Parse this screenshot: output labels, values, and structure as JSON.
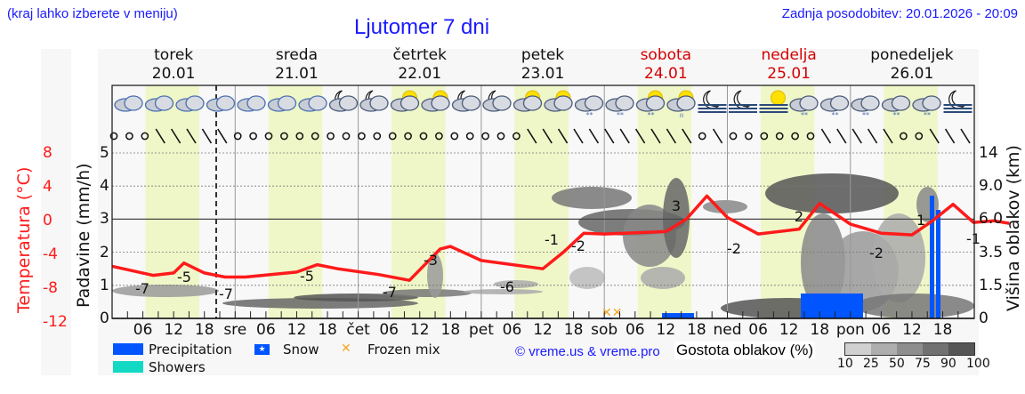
{
  "header": {
    "location_note": "(kraj lahko izberete v meniju)",
    "title": "Ljutomer 7 dni",
    "last_update": "Zadnja posodobitev: 20.01.2026 - 20:09"
  },
  "days": [
    {
      "name": "torek",
      "date": "20.01",
      "weekend": false
    },
    {
      "name": "sreda",
      "date": "21.01",
      "weekend": false
    },
    {
      "name": "četrtek",
      "date": "22.01",
      "weekend": false
    },
    {
      "name": "petek",
      "date": "23.01",
      "weekend": false
    },
    {
      "name": "sobota",
      "date": "24.01",
      "weekend": true
    },
    {
      "name": "nedelja",
      "date": "25.01",
      "weekend": true
    },
    {
      "name": "ponedeljek",
      "date": "26.01",
      "weekend": false
    }
  ],
  "axes": {
    "temp_label": "Temperatura (°C)",
    "precip_label": "Padavine (mm/h)",
    "cloud_height_label": "Višina oblakov (km)",
    "temp_ticks": [
      "8",
      "4",
      "0",
      "-4",
      "-8",
      "-12"
    ],
    "precip_ticks": [
      "5",
      "4",
      "3",
      "2",
      "1",
      "0"
    ],
    "cloud_height_ticks": [
      "14",
      "9.0",
      "6.0",
      "3.5",
      "1.5",
      "0"
    ],
    "x_ticks": [
      "06",
      "12",
      "18",
      "sre",
      "06",
      "12",
      "18",
      "čet",
      "06",
      "12",
      "18",
      "pet",
      "06",
      "12",
      "18",
      "sob",
      "06",
      "12",
      "18",
      "ned",
      "06",
      "12",
      "18",
      "pon",
      "06",
      "12",
      "18"
    ]
  },
  "legend": {
    "precipitation": "Precipitation",
    "snow": "Snow",
    "frozen_mix": "Frozen mix",
    "showers": "Showers",
    "credit": "© vreme.us & vreme.pro",
    "cloud_density_label": "Gostota oblakov (%)",
    "cloud_density_scale": [
      "10",
      "25",
      "50",
      "75",
      "90",
      "100"
    ]
  },
  "colors": {
    "temperature": "#ff1a1a",
    "precipitation": "#0055ff",
    "showers": "#11d9c4",
    "frozen_mix": "#f5a623",
    "daylight": "#eff7c8",
    "title": "#1a1aff",
    "weekend": "#d40000"
  },
  "weather_icons": [
    "cloudy",
    "cloudy",
    "cloudy",
    "cloudy",
    "cloudy",
    "cloudy",
    "cloudy",
    "moon-cloud",
    "moon-cloud",
    "sun-cloud",
    "sun-cloud",
    "moon-cloud",
    "moon-cloud",
    "sun-cloud",
    "sun-cloud",
    "snow-cloud",
    "snow-cloud",
    "sun-snow-cloud",
    "sun-rain-cloud",
    "moon-fog",
    "moon-fog",
    "sun-fog",
    "snow-cloud",
    "snow-cloud",
    "snow-cloud",
    "snow-cloud",
    "snow-cloud",
    "moon-fog"
  ],
  "chart_data": {
    "type": "line",
    "title": "Ljutomer 7 dni",
    "xlabel": "",
    "ylabel": "Temperatura (°C) / Padavine (mm/h)",
    "ylim_temperature": [
      -12,
      10
    ],
    "ylim_precipitation": [
      0,
      5.5
    ],
    "grid": true,
    "legend_position": "bottom",
    "x": [
      "20.01 00",
      "20.01 06",
      "20.01 12",
      "20.01 18",
      "21.01 00",
      "21.01 06",
      "21.01 12",
      "21.01 18",
      "22.01 00",
      "22.01 06",
      "22.01 12",
      "22.01 18",
      "23.01 00",
      "23.01 06",
      "23.01 12",
      "23.01 18",
      "24.01 00",
      "24.01 06",
      "24.01 12",
      "24.01 18",
      "25.01 00",
      "25.01 06",
      "25.01 12",
      "25.01 18",
      "26.01 00",
      "26.01 06",
      "26.01 12",
      "26.01 18",
      "27.01 00"
    ],
    "series": [
      {
        "name": "Temperatura (°C)",
        "values": [
          -6.5,
          -7.3,
          -6.8,
          -5.5,
          -7.1,
          -7.2,
          -6.8,
          -5.6,
          -6.4,
          -6.9,
          -7.4,
          -3.5,
          -4.8,
          -6.0,
          -6.2,
          -1.0,
          -1.7,
          -1.6,
          -1.3,
          2.8,
          -1.0,
          -1.8,
          -1.0,
          1.7,
          -1.5,
          -2.0,
          -2.1,
          0.8,
          -0.5
        ]
      },
      {
        "name": "Precipitation (mm/h)",
        "values": [
          0,
          0,
          0,
          0,
          0,
          0,
          0,
          0,
          0,
          0,
          0,
          0,
          0,
          0,
          0,
          0,
          0.05,
          0.15,
          0.1,
          0,
          0,
          0,
          0.3,
          0.8,
          0.1,
          0.05,
          0,
          3.7,
          0
        ]
      }
    ],
    "annotations": [
      {
        "x": "20.01 06",
        "label": "-7"
      },
      {
        "x": "20.01 14",
        "label": "-5"
      },
      {
        "x": "21.01 00",
        "label": "-7"
      },
      {
        "x": "21.01 14",
        "label": "-5"
      },
      {
        "x": "22.01 06",
        "label": "-7"
      },
      {
        "x": "22.01 14",
        "label": "-3"
      },
      {
        "x": "23.01 06",
        "label": "-6"
      },
      {
        "x": "23.01 12",
        "label": "-1"
      },
      {
        "x": "23.01 15",
        "label": "-2"
      },
      {
        "x": "24.01 14",
        "label": "3"
      },
      {
        "x": "25.01 00",
        "label": "-2"
      },
      {
        "x": "25.01 14",
        "label": "2"
      },
      {
        "x": "26.01 06",
        "label": "-2"
      },
      {
        "x": "26.01 15",
        "label": "1"
      },
      {
        "x": "27.01 00",
        "label": "-1"
      }
    ],
    "current_time_marker": "20.01 20:09"
  }
}
